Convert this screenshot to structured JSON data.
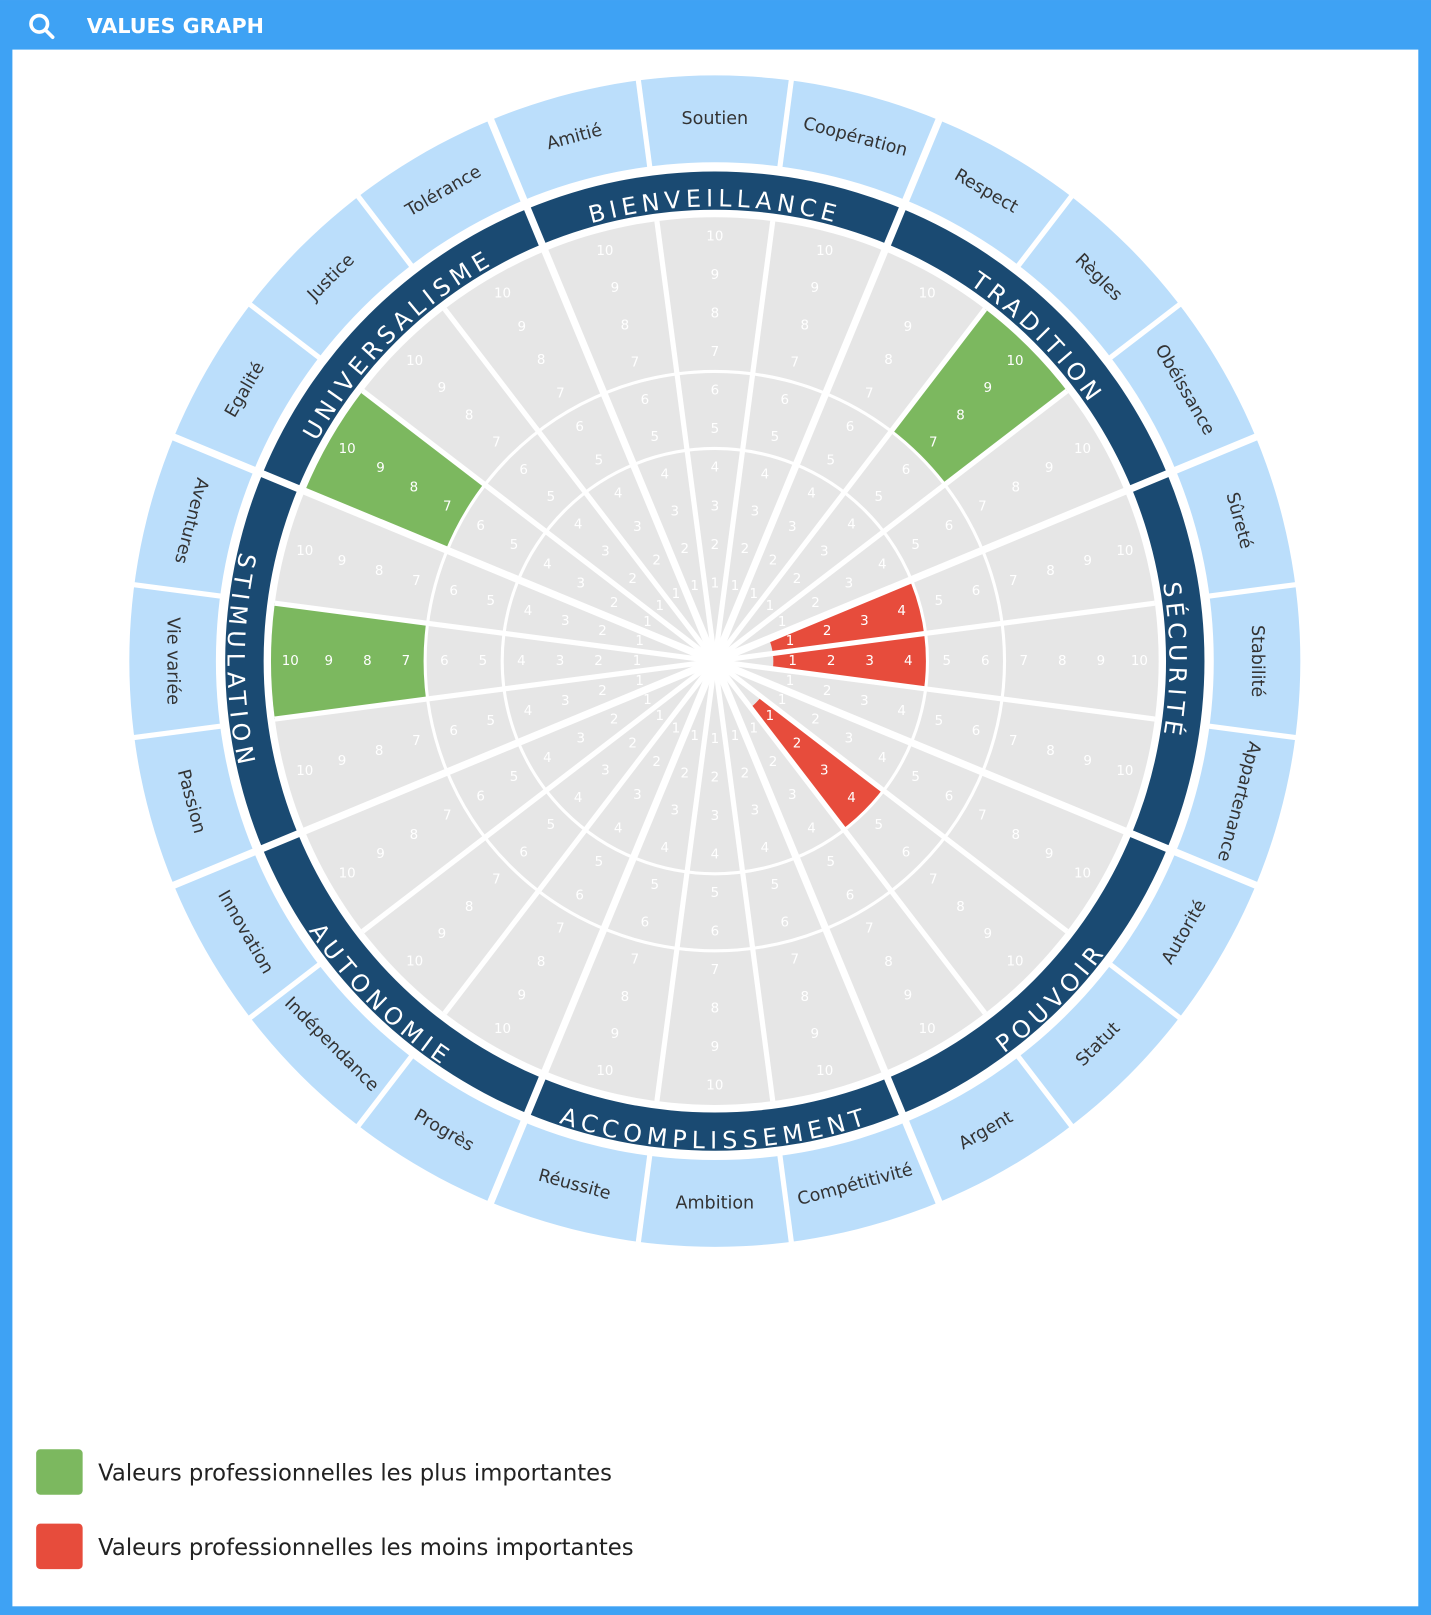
{
  "header": {
    "title": "VALUES GRAPH"
  },
  "chart_data": {
    "type": "values-wheel",
    "scale": [
      1,
      2,
      3,
      4,
      5,
      6,
      7,
      8,
      9,
      10
    ],
    "bands": [
      [
        1,
        4
      ],
      [
        5,
        6
      ],
      [
        7,
        10
      ]
    ],
    "groups": [
      {
        "name": "BIENVEILLANCE",
        "values": [
          {
            "label": "Amitié"
          },
          {
            "label": "Soutien"
          },
          {
            "label": "Coopération"
          }
        ]
      },
      {
        "name": "TRADITION",
        "values": [
          {
            "label": "Respect"
          },
          {
            "label": "Règles",
            "legend": 0
          },
          {
            "label": "Obéissance"
          }
        ]
      },
      {
        "name": "SÉCURITÉ",
        "values": [
          {
            "label": "Sûreté",
            "legend": 1
          },
          {
            "label": "Stabilité",
            "legend": 1
          },
          {
            "label": "Appartenance"
          }
        ]
      },
      {
        "name": "POUVOIR",
        "values": [
          {
            "label": "Autorité"
          },
          {
            "label": "Statut",
            "legend": 1
          },
          {
            "label": "Argent"
          }
        ]
      },
      {
        "name": "ACCOMPLISSEMENT",
        "values": [
          {
            "label": "Compétitivité"
          },
          {
            "label": "Ambition"
          },
          {
            "label": "Réussite"
          }
        ]
      },
      {
        "name": "AUTONOMIE",
        "values": [
          {
            "label": "Progrès"
          },
          {
            "label": "Indépendance"
          },
          {
            "label": "Innovation"
          }
        ]
      },
      {
        "name": "STIMULATION",
        "values": [
          {
            "label": "Passion"
          },
          {
            "label": "Vie variée",
            "legend": 0
          },
          {
            "label": "Aventures"
          }
        ]
      },
      {
        "name": "UNIVERSALISME",
        "values": [
          {
            "label": "Egalité",
            "legend": 0
          },
          {
            "label": "Justice"
          },
          {
            "label": "Tolérance"
          }
        ]
      }
    ],
    "legend": [
      {
        "label": "Valeurs professionnelles les plus importantes",
        "color": "#7cb85f",
        "band": 2
      },
      {
        "label": "Valeurs professionnelles les moins importantes",
        "color": "#e74c3c",
        "band": 0
      }
    ]
  }
}
